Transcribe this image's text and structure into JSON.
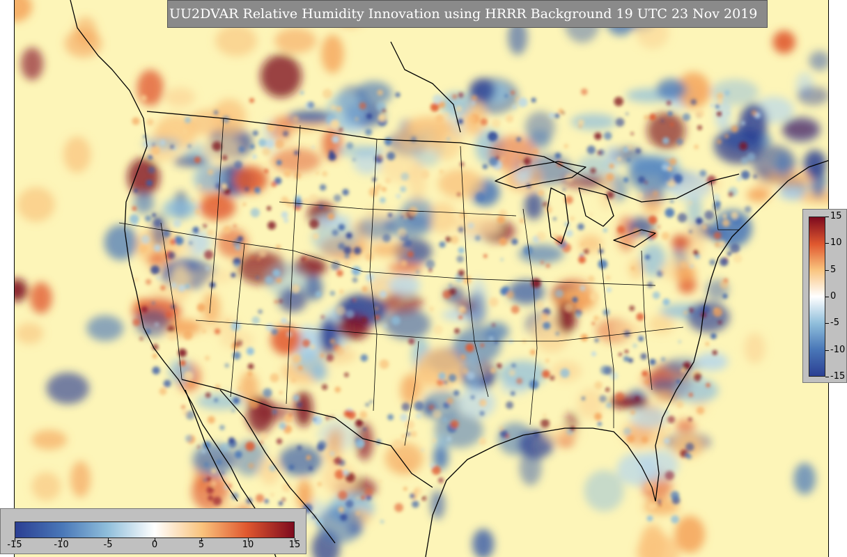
{
  "title": "UU2DVAR Relative Humidity Innovation using HRRR Background 19 UTC 23 Nov 2019",
  "colorbar": {
    "min": -15,
    "max": 15,
    "ticks": [
      "-15",
      "-10",
      "-5",
      "0",
      "5",
      "10",
      "15"
    ],
    "colors": [
      "#2b3f93",
      "#4a78b8",
      "#8fbedb",
      "#ffffff",
      "#f9c37d",
      "#e0582f",
      "#7d0a1e"
    ]
  },
  "map": {
    "projection": "lambert-conformal",
    "region": "CONUS",
    "background_color": "#fdf5b8"
  }
}
